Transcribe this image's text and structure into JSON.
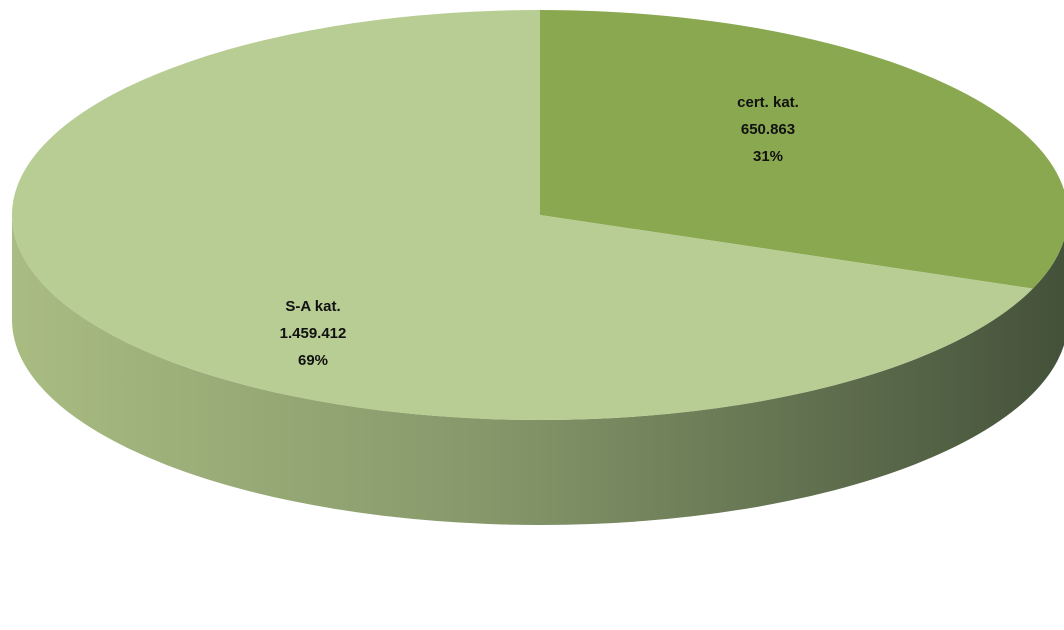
{
  "chart_data": {
    "type": "pie",
    "style": "3d",
    "title": "",
    "legend": "none",
    "start_angle_deg": 0,
    "direction": "clockwise",
    "slices": [
      {
        "label": "cert. kat.",
        "value_text": "650.863",
        "value": 650863,
        "percent_text": "31%",
        "percent": 31,
        "color": "#8aa84f"
      },
      {
        "label": "S-A kat.",
        "value_text": "1.459.412",
        "value": 1459412,
        "percent_text": "69%",
        "percent": 69,
        "color": "#b8cd94"
      }
    ],
    "side_colors": {
      "light": "#a9bc82",
      "dark": "#44513a"
    }
  }
}
